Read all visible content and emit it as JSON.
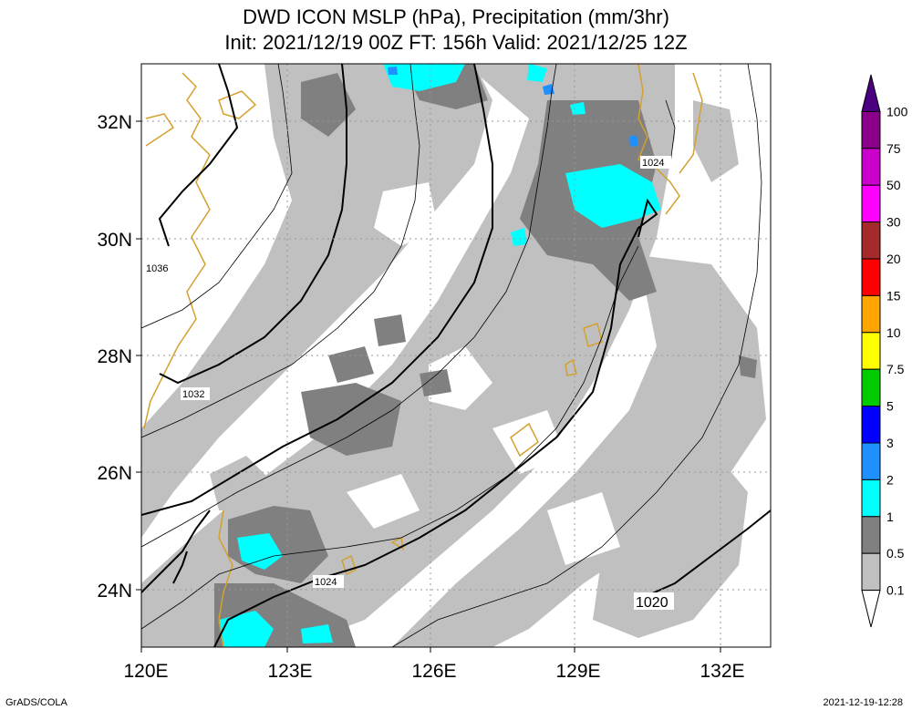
{
  "title": {
    "line1": "DWD ICON MSLP (hPa), Precipitation (mm/3hr)",
    "line2": "Init: 2021/12/19 00Z  FT: 156h  Valid: 2021/12/25 12Z"
  },
  "map": {
    "x_ticks": [
      "120E",
      "123E",
      "126E",
      "129E",
      "132E"
    ],
    "y_ticks": [
      "32N",
      "30N",
      "28N",
      "26N",
      "24N"
    ],
    "isobar_labels": [
      "1036",
      "1032",
      "1024",
      "1024",
      "1020"
    ]
  },
  "legend": {
    "colors": [
      "#ffffff",
      "#c0c0c0",
      "#808080",
      "#00ffff",
      "#1e90ff",
      "#0000ff",
      "#00cc00",
      "#ffff00",
      "#ffa500",
      "#ff0000",
      "#a52a2a",
      "#ff00ff",
      "#cc00cc",
      "#8b008b",
      "#4b0082"
    ],
    "labels": [
      "0.1",
      "0.5",
      "1",
      "2",
      "3",
      "5",
      "7.5",
      "10",
      "15",
      "20",
      "30",
      "50",
      "75",
      "100"
    ]
  },
  "footer": {
    "left": "GrADS/COLA",
    "right": "2021-12-19-12:28"
  }
}
